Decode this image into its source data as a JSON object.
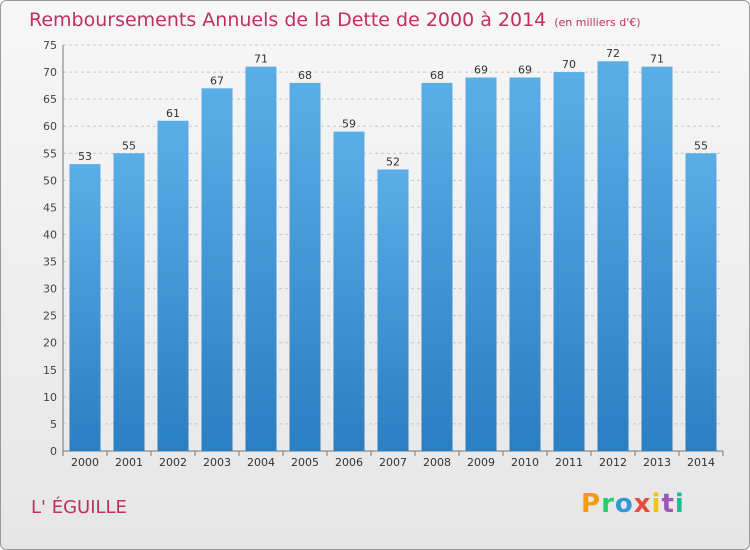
{
  "header": {
    "title": "Remboursements Annuels de la Dette de 2000 à 2014",
    "subtitle": "(en milliers d'€)"
  },
  "place": "L' ÉGUILLE",
  "logo": "Proxiti",
  "colors": {
    "title": "#c0305c",
    "bar_top": "#5aaee8",
    "bar_bottom": "#2a7ec2",
    "grid": "#c8c8c8"
  },
  "chart_data": {
    "type": "bar",
    "categories": [
      "2000",
      "2001",
      "2002",
      "2003",
      "2004",
      "2005",
      "2006",
      "2007",
      "2008",
      "2009",
      "2010",
      "2011",
      "2012",
      "2013",
      "2014"
    ],
    "values": [
      53,
      55,
      61,
      67,
      71,
      68,
      59,
      52,
      68,
      69,
      69,
      70,
      72,
      71,
      55
    ],
    "ylim": [
      0,
      75
    ],
    "yticks": [
      0,
      5,
      10,
      15,
      20,
      25,
      30,
      35,
      40,
      45,
      50,
      55,
      60,
      65,
      70,
      75
    ],
    "grid": true,
    "data_labels": true
  }
}
